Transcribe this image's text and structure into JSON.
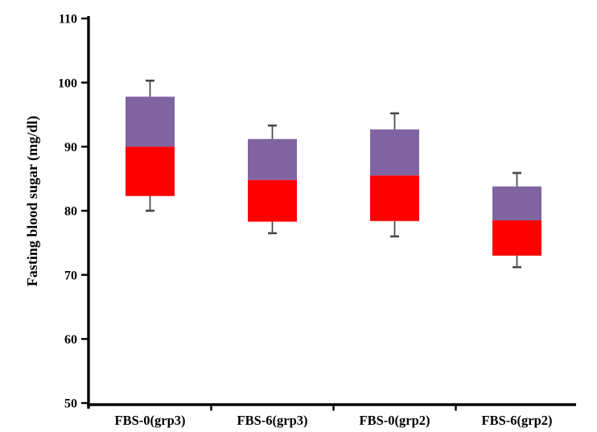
{
  "figure": {
    "background": "#ffffff"
  },
  "chart_data": {
    "type": "bar",
    "subtype": "stacked-range-segments-with-error-bars",
    "title": "",
    "xlabel": "",
    "ylabel": "Fasting blood sugar (mg/dl)",
    "ylim": [
      50,
      110
    ],
    "yticks": [
      50,
      60,
      70,
      80,
      90,
      100,
      110
    ],
    "grid": false,
    "legend_position": "none",
    "categories": [
      "FBS-0(grp3)",
      "FBS-6(grp3)",
      "FBS-0(grp2)",
      "FBS-6(grp2)"
    ],
    "series": [
      {
        "name": "lower-segment",
        "color": "#FF0000",
        "bottom": [
          82.3,
          78.3,
          78.4,
          73.0
        ],
        "top": [
          90.0,
          84.8,
          85.5,
          78.5
        ]
      },
      {
        "name": "upper-segment",
        "color": "#8064A2",
        "bottom": [
          90.0,
          84.8,
          85.5,
          78.5
        ],
        "top": [
          97.8,
          91.2,
          92.7,
          83.8
        ]
      }
    ],
    "error_bars": {
      "color": "#474747",
      "low": [
        80.0,
        76.5,
        76.0,
        71.2
      ],
      "high": [
        100.3,
        93.3,
        95.2,
        85.9
      ]
    },
    "axis_color": "#000000"
  }
}
